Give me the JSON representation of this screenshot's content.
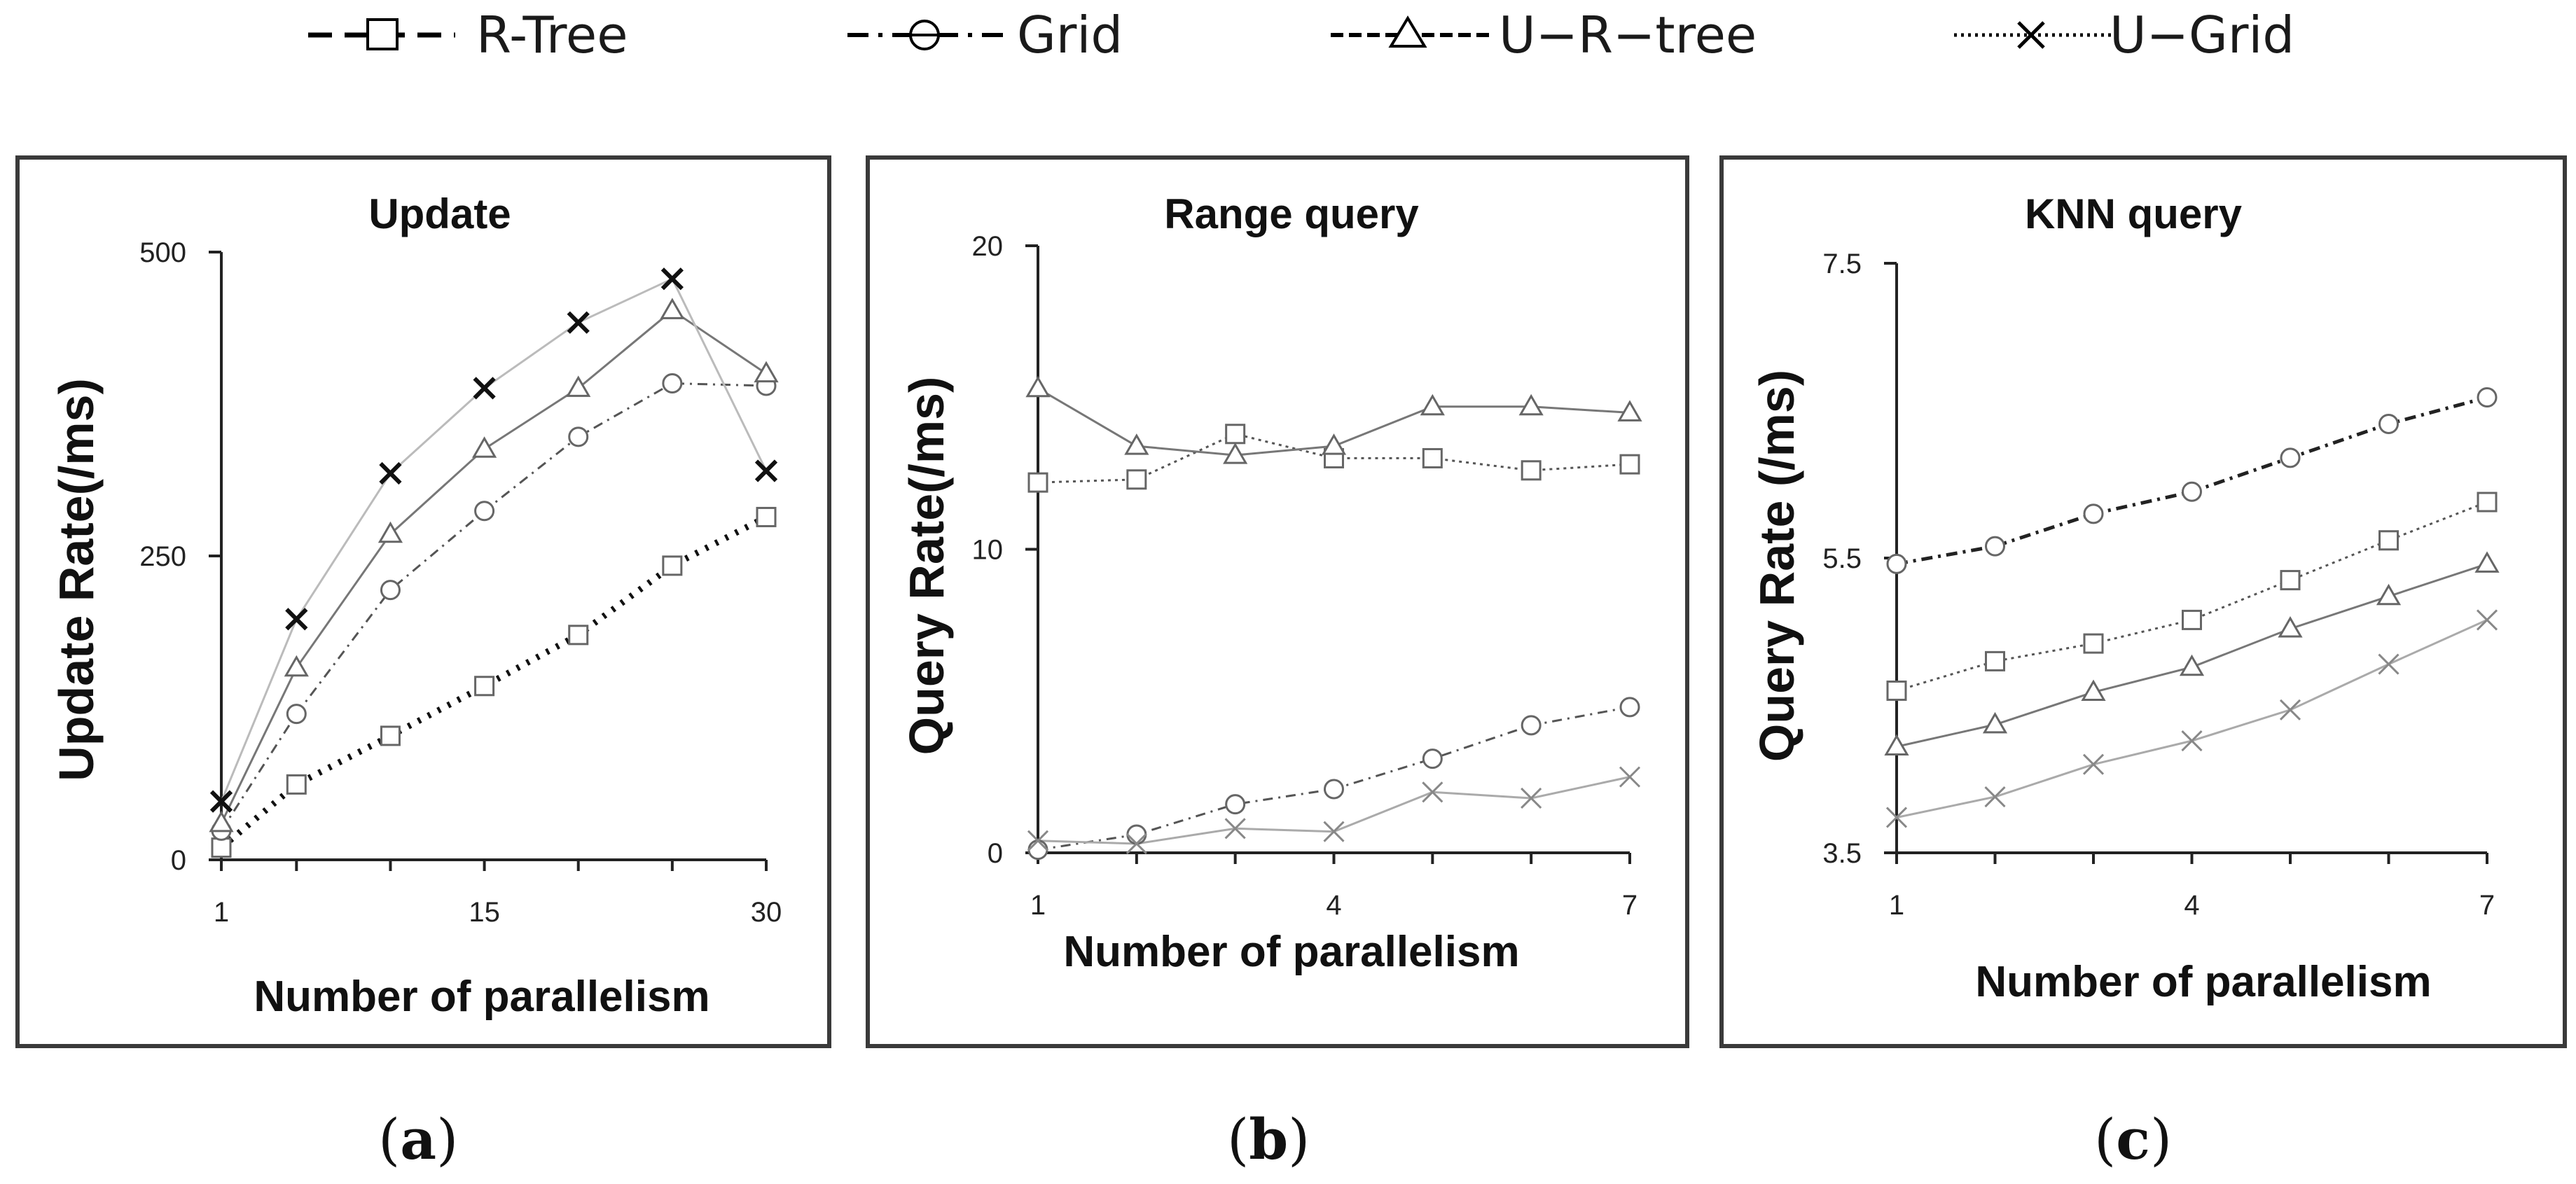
{
  "legend": [
    {
      "name": "R-Tree",
      "marker": "square",
      "dash": "dashed",
      "color": "#000000"
    },
    {
      "name": "Grid",
      "marker": "circle",
      "dash": "dashdot",
      "color": "#000000"
    },
    {
      "name": "U−R−tree",
      "marker": "triangle",
      "dash": "dashed-fine",
      "color": "#000000"
    },
    {
      "name": "U−Grid",
      "marker": "x",
      "dash": "dotted",
      "color": "#000000"
    }
  ],
  "captions": {
    "a": "(a)",
    "b": "(b)",
    "c": "(c)"
  },
  "chart_data": [
    {
      "type": "line",
      "title": "Update",
      "xlabel": "Number of  parallelism",
      "ylabel": "Update Rate(/ms)",
      "xlim": [
        1,
        30
      ],
      "ylim": [
        0,
        500
      ],
      "xticks": [
        1,
        15,
        30
      ],
      "xtick_labels": [
        "1",
        "15",
        "30"
      ],
      "yticks": [
        0,
        250,
        500
      ],
      "ytick_labels": [
        "0",
        "250",
        "500"
      ],
      "series": [
        {
          "name": "R-Tree",
          "x": [
            1,
            5,
            10,
            15,
            20,
            25,
            30
          ],
          "y": [
            10,
            62,
            102,
            143,
            185,
            242,
            282
          ]
        },
        {
          "name": "Grid",
          "x": [
            1,
            5,
            10,
            15,
            20,
            25,
            30
          ],
          "y": [
            24,
            120,
            222,
            287,
            348,
            392,
            390
          ]
        },
        {
          "name": "U−R−tree",
          "x": [
            1,
            5,
            10,
            15,
            20,
            25,
            30
          ],
          "y": [
            30,
            158,
            268,
            338,
            388,
            452,
            400
          ]
        },
        {
          "name": "U−Grid",
          "x": [
            1,
            5,
            10,
            15,
            20,
            25,
            30
          ],
          "y": [
            48,
            198,
            318,
            388,
            442,
            478,
            320
          ]
        }
      ]
    },
    {
      "type": "line",
      "title": "Range query",
      "xlabel": "Number of  parallelism",
      "ylabel": "Query Rate(/ms)",
      "xlim": [
        1,
        7
      ],
      "ylim": [
        0,
        20
      ],
      "xticks": [
        1,
        4,
        7
      ],
      "xtick_labels": [
        "1",
        "4",
        "7"
      ],
      "yticks": [
        0,
        10,
        20
      ],
      "ytick_labels": [
        "0",
        "10",
        "20"
      ],
      "series": [
        {
          "name": "R-Tree",
          "x": [
            1,
            2,
            3,
            4,
            5,
            6,
            7
          ],
          "y": [
            12.2,
            12.3,
            13.8,
            13.0,
            13.0,
            12.6,
            12.8
          ]
        },
        {
          "name": "Grid",
          "x": [
            1,
            2,
            3,
            4,
            5,
            6,
            7
          ],
          "y": [
            0.1,
            0.6,
            1.6,
            2.1,
            3.1,
            4.2,
            4.8
          ]
        },
        {
          "name": "U−R−tree",
          "x": [
            1,
            2,
            3,
            4,
            5,
            6,
            7
          ],
          "y": [
            15.3,
            13.4,
            13.1,
            13.4,
            14.7,
            14.7,
            14.5
          ]
        },
        {
          "name": "U−Grid",
          "x": [
            1,
            2,
            3,
            4,
            5,
            6,
            7
          ],
          "y": [
            0.4,
            0.3,
            0.8,
            0.7,
            2.0,
            1.8,
            2.5
          ]
        }
      ]
    },
    {
      "type": "line",
      "title": "KNN query",
      "xlabel": "Number of  parallelism",
      "ylabel": "Query Rate (/ms)",
      "xlim": [
        1,
        7
      ],
      "ylim": [
        3.5,
        7.5
      ],
      "xticks": [
        1,
        4,
        7
      ],
      "xtick_labels": [
        "1",
        "4",
        "7"
      ],
      "yticks": [
        3.5,
        5.5,
        7.5
      ],
      "ytick_labels": [
        "3.5",
        "5.5",
        "7.5"
      ],
      "series": [
        {
          "name": "R-Tree",
          "x": [
            1,
            2,
            3,
            4,
            5,
            6,
            7
          ],
          "y": [
            4.6,
            4.8,
            4.92,
            5.08,
            5.35,
            5.62,
            5.88
          ]
        },
        {
          "name": "Grid",
          "x": [
            1,
            2,
            3,
            4,
            5,
            6,
            7
          ],
          "y": [
            5.46,
            5.58,
            5.8,
            5.95,
            6.18,
            6.41,
            6.59
          ]
        },
        {
          "name": "U−R−tree",
          "x": [
            1,
            2,
            3,
            4,
            5,
            6,
            7
          ],
          "y": [
            4.22,
            4.37,
            4.59,
            4.76,
            5.02,
            5.24,
            5.46
          ]
        },
        {
          "name": "U−Grid",
          "x": [
            1,
            2,
            3,
            4,
            5,
            6,
            7
          ],
          "y": [
            3.74,
            3.88,
            4.1,
            4.26,
            4.47,
            4.78,
            5.08
          ]
        }
      ]
    }
  ]
}
